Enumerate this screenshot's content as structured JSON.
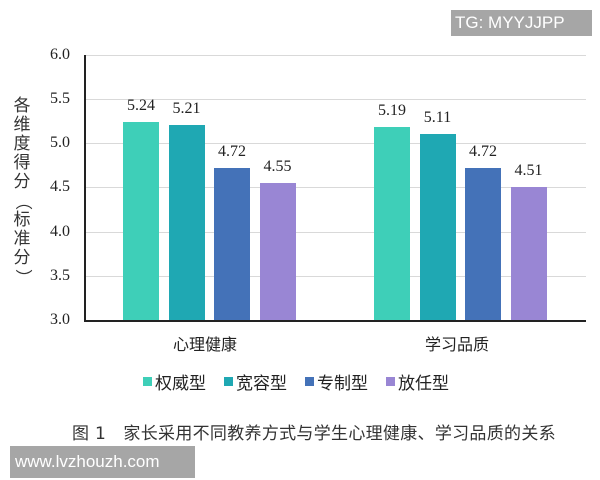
{
  "watermarks": {
    "top_right": "TG: MYYJJPP",
    "bottom_left": "www.lvzhouzh.com"
  },
  "caption": "图 1　家长采用不同教养方式与学生心理健康、学习品质的关系",
  "chart_data": {
    "type": "bar",
    "title": "",
    "xlabel": "",
    "ylabel": "各维度得分（标准分）",
    "ylim": [
      3.0,
      6.0
    ],
    "yticks": [
      "6.0",
      "5.5",
      "5.0",
      "4.5",
      "4.0",
      "3.5",
      "3.0"
    ],
    "grid": true,
    "legend_position": "bottom",
    "categories": [
      "心理健康",
      "学习品质"
    ],
    "series": [
      {
        "name": "权威型",
        "color": "#3ecfb8",
        "values": [
          5.24,
          5.19
        ]
      },
      {
        "name": "宽容型",
        "color": "#1fa8b3",
        "values": [
          5.21,
          5.11
        ]
      },
      {
        "name": "专制型",
        "color": "#4472b8",
        "values": [
          4.72,
          4.72
        ]
      },
      {
        "name": "放任型",
        "color": "#9986d4",
        "values": [
          4.55,
          4.51
        ]
      }
    ],
    "data_labels": [
      [
        "5.24",
        "5.21",
        "4.72",
        "4.55"
      ],
      [
        "5.19",
        "5.11",
        "4.72",
        "4.51"
      ]
    ]
  }
}
